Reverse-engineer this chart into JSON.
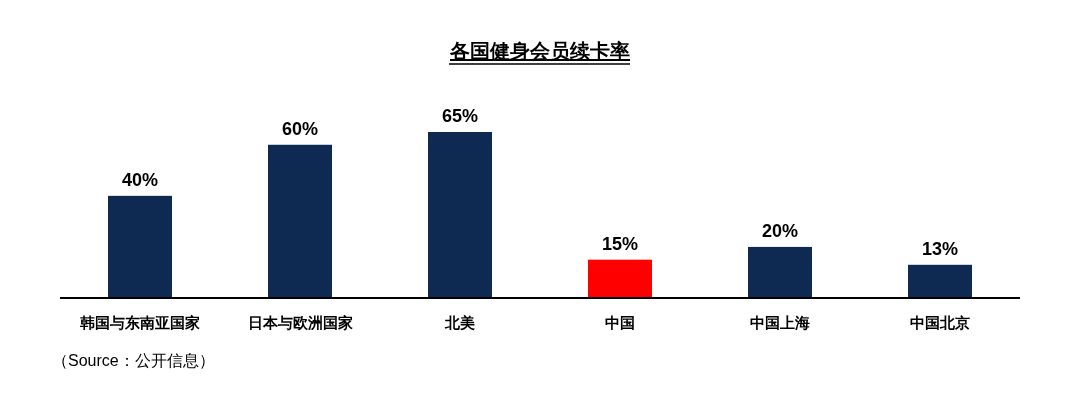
{
  "chart_data": {
    "type": "bar",
    "title": "各国健身会员续卡率",
    "categories": [
      "韩国与东南亚国家",
      "日本与欧洲国家",
      "北美",
      "中国",
      "中国上海",
      "中国北京"
    ],
    "values": [
      40,
      60,
      65,
      15,
      20,
      13
    ],
    "value_labels": [
      "40%",
      "60%",
      "65%",
      "15%",
      "20%",
      "13%"
    ],
    "colors": [
      "#0e2a52",
      "#0e2a52",
      "#0e2a52",
      "#ff0000",
      "#0e2a52",
      "#0e2a52"
    ],
    "annotations": [
      "（Source：公开信息）"
    ]
  }
}
